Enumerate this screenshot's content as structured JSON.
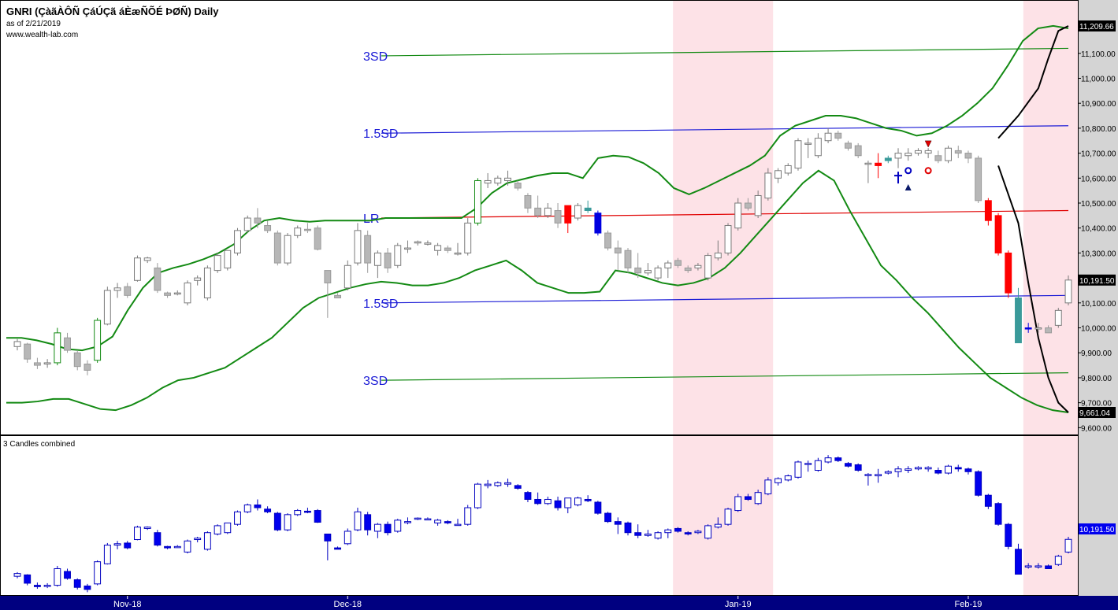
{
  "header": {
    "title": "GNRI (ÇàãÀÔÑ ÇáÚÇã áÈæÑÕÉ ÞØÑ) Daily",
    "as_of": "as of 2/21/2019",
    "source": "www.wealth-lab.com"
  },
  "lower_pane": {
    "title": "3 Candles combined"
  },
  "chart_data": [
    {
      "type": "candlestick",
      "title": "GNRI (ÇàãÀÔÑ ÇáÚÇã áÈæÑÕÉ ÞØÑ) Daily",
      "yticks": [
        "11,100.00",
        "11,000.00",
        "10,900.00",
        "10,800.00",
        "10,700.00",
        "10,600.00",
        "10,500.00",
        "10,400.00",
        "10,300.00",
        "10,200.00",
        "10,100.00",
        "10,000.00",
        "9,900.00",
        "9,800.00",
        "9,700.00",
        "9,600.00"
      ],
      "ylim": [
        9600,
        11250
      ],
      "x_labels": [
        "Nov-18",
        "Dec-18",
        "Jan-19",
        "Feb-19"
      ],
      "last_values": {
        "projection_top": "11,209.66",
        "close": "10,191.50",
        "projection_bottom": "9,661.04"
      },
      "regression_channel_labels": [
        "3SD",
        "1.5SD",
        "LR",
        "1.5SD",
        "3SD"
      ],
      "regression_channel": {
        "lr_start": 10440,
        "lr_end": 10470,
        "sd15": 340,
        "sd3": 650
      },
      "highlighted_periods": [
        "late Dec-18 to early Jan-19",
        "mid Feb-19 to end"
      ],
      "colors": {
        "up_body": "#ffffff",
        "down_body": "#b7b7b7",
        "highlight_red": "#ff0000",
        "highlight_teal": "#3a9a9a",
        "highlight_blue": "#0000e0",
        "bands": "#138a13",
        "lr": "#e00000",
        "channel": "#1c1cd6",
        "shade": "#fde2e7"
      },
      "candles": [
        {
          "o": 9925,
          "h": 9955,
          "l": 9910,
          "c": 9945
        },
        {
          "o": 9935,
          "h": 9940,
          "l": 9860,
          "c": 9875
        },
        {
          "o": 9860,
          "h": 9880,
          "l": 9835,
          "c": 9850
        },
        {
          "o": 9855,
          "h": 9875,
          "l": 9840,
          "c": 9860
        },
        {
          "o": 9860,
          "h": 10000,
          "l": 9850,
          "c": 9980
        },
        {
          "o": 9960,
          "h": 9980,
          "l": 9900,
          "c": 9910
        },
        {
          "o": 9900,
          "h": 9910,
          "l": 9830,
          "c": 9845
        },
        {
          "o": 9855,
          "h": 9870,
          "l": 9810,
          "c": 9830
        },
        {
          "o": 9870,
          "h": 10040,
          "l": 9860,
          "c": 10030
        },
        {
          "o": 10015,
          "h": 10165,
          "l": 10010,
          "c": 10150
        },
        {
          "o": 10150,
          "h": 10180,
          "l": 10120,
          "c": 10160
        },
        {
          "o": 10165,
          "h": 10180,
          "l": 10120,
          "c": 10130
        },
        {
          "o": 10190,
          "h": 10290,
          "l": 10185,
          "c": 10280
        },
        {
          "o": 10270,
          "h": 10285,
          "l": 10260,
          "c": 10280
        },
        {
          "o": 10240,
          "h": 10260,
          "l": 10140,
          "c": 10150
        },
        {
          "o": 10140,
          "h": 10145,
          "l": 10120,
          "c": 10130
        },
        {
          "o": 10140,
          "h": 10150,
          "l": 10130,
          "c": 10140
        },
        {
          "o": 10100,
          "h": 10190,
          "l": 10090,
          "c": 10180
        },
        {
          "o": 10190,
          "h": 10210,
          "l": 10170,
          "c": 10200
        },
        {
          "o": 10120,
          "h": 10250,
          "l": 10110,
          "c": 10240
        },
        {
          "o": 10230,
          "h": 10300,
          "l": 10220,
          "c": 10290
        },
        {
          "o": 10240,
          "h": 10310,
          "l": 10230,
          "c": 10310
        },
        {
          "o": 10300,
          "h": 10400,
          "l": 10290,
          "c": 10390
        },
        {
          "o": 10390,
          "h": 10450,
          "l": 10380,
          "c": 10440
        },
        {
          "o": 10440,
          "h": 10480,
          "l": 10400,
          "c": 10420
        },
        {
          "o": 10410,
          "h": 10430,
          "l": 10380,
          "c": 10390
        },
        {
          "o": 10380,
          "h": 10390,
          "l": 10250,
          "c": 10260
        },
        {
          "o": 10260,
          "h": 10380,
          "l": 10250,
          "c": 10370
        },
        {
          "o": 10370,
          "h": 10410,
          "l": 10360,
          "c": 10400
        },
        {
          "o": 10395,
          "h": 10420,
          "l": 10380,
          "c": 10390
        },
        {
          "o": 10400,
          "h": 10410,
          "l": 10310,
          "c": 10315
        },
        {
          "o": 10230,
          "h": 10230,
          "l": 10040,
          "c": 10180
        },
        {
          "o": 10130,
          "h": 10140,
          "l": 10120,
          "c": 10120
        },
        {
          "o": 10160,
          "h": 10270,
          "l": 10150,
          "c": 10250
        },
        {
          "o": 10260,
          "h": 10420,
          "l": 10250,
          "c": 10390
        },
        {
          "o": 10370,
          "h": 10390,
          "l": 10220,
          "c": 10260
        },
        {
          "o": 10250,
          "h": 10310,
          "l": 10200,
          "c": 10300
        },
        {
          "o": 10300,
          "h": 10320,
          "l": 10220,
          "c": 10240
        },
        {
          "o": 10250,
          "h": 10340,
          "l": 10240,
          "c": 10330
        },
        {
          "o": 10320,
          "h": 10350,
          "l": 10300,
          "c": 10320
        },
        {
          "o": 10340,
          "h": 10350,
          "l": 10330,
          "c": 10345
        },
        {
          "o": 10335,
          "h": 10350,
          "l": 10330,
          "c": 10340
        },
        {
          "o": 10310,
          "h": 10340,
          "l": 10290,
          "c": 10330
        },
        {
          "o": 10320,
          "h": 10330,
          "l": 10300,
          "c": 10310
        },
        {
          "o": 10300,
          "h": 10340,
          "l": 10290,
          "c": 10300
        },
        {
          "o": 10300,
          "h": 10440,
          "l": 10290,
          "c": 10420
        },
        {
          "o": 10420,
          "h": 10600,
          "l": 10410,
          "c": 10590
        },
        {
          "o": 10580,
          "h": 10620,
          "l": 10560,
          "c": 10590
        },
        {
          "o": 10580,
          "h": 10610,
          "l": 10570,
          "c": 10600
        },
        {
          "o": 10590,
          "h": 10630,
          "l": 10570,
          "c": 10600
        },
        {
          "o": 10580,
          "h": 10590,
          "l": 10550,
          "c": 10560
        },
        {
          "o": 10530,
          "h": 10540,
          "l": 10460,
          "c": 10480
        },
        {
          "o": 10480,
          "h": 10530,
          "l": 10440,
          "c": 10450
        },
        {
          "o": 10450,
          "h": 10500,
          "l": 10440,
          "c": 10480
        },
        {
          "o": 10470,
          "h": 10500,
          "l": 10400,
          "c": 10420
        },
        {
          "o": 10420,
          "h": 10480,
          "l": 10380,
          "c": 10490
        },
        {
          "o": 10440,
          "h": 10500,
          "l": 10430,
          "c": 10490
        },
        {
          "o": 10480,
          "h": 10510,
          "l": 10460,
          "c": 10470
        },
        {
          "o": 10460,
          "h": 10470,
          "l": 10370,
          "c": 10380
        },
        {
          "o": 10380,
          "h": 10390,
          "l": 10310,
          "c": 10320
        },
        {
          "o": 10320,
          "h": 10350,
          "l": 10230,
          "c": 10300
        },
        {
          "o": 10310,
          "h": 10320,
          "l": 10220,
          "c": 10240
        },
        {
          "o": 10240,
          "h": 10300,
          "l": 10200,
          "c": 10220
        },
        {
          "o": 10220,
          "h": 10260,
          "l": 10210,
          "c": 10230
        },
        {
          "o": 10200,
          "h": 10250,
          "l": 10190,
          "c": 10240
        },
        {
          "o": 10240,
          "h": 10270,
          "l": 10200,
          "c": 10260
        },
        {
          "o": 10270,
          "h": 10280,
          "l": 10240,
          "c": 10250
        },
        {
          "o": 10240,
          "h": 10250,
          "l": 10220,
          "c": 10230
        },
        {
          "o": 10240,
          "h": 10260,
          "l": 10230,
          "c": 10250
        },
        {
          "o": 10200,
          "h": 10300,
          "l": 10190,
          "c": 10290
        },
        {
          "o": 10280,
          "h": 10350,
          "l": 10270,
          "c": 10300
        },
        {
          "o": 10300,
          "h": 10420,
          "l": 10290,
          "c": 10410
        },
        {
          "o": 10400,
          "h": 10520,
          "l": 10390,
          "c": 10500
        },
        {
          "o": 10500,
          "h": 10520,
          "l": 10470,
          "c": 10480
        },
        {
          "o": 10450,
          "h": 10550,
          "l": 10440,
          "c": 10530
        },
        {
          "o": 10520,
          "h": 10640,
          "l": 10510,
          "c": 10620
        },
        {
          "o": 10600,
          "h": 10640,
          "l": 10580,
          "c": 10630
        },
        {
          "o": 10620,
          "h": 10660,
          "l": 10610,
          "c": 10650
        },
        {
          "o": 10640,
          "h": 10760,
          "l": 10630,
          "c": 10750
        },
        {
          "o": 10740,
          "h": 10760,
          "l": 10680,
          "c": 10740
        },
        {
          "o": 10690,
          "h": 10780,
          "l": 10680,
          "c": 10760
        },
        {
          "o": 10750,
          "h": 10800,
          "l": 10740,
          "c": 10780
        },
        {
          "o": 10780,
          "h": 10790,
          "l": 10750,
          "c": 10760
        },
        {
          "o": 10740,
          "h": 10750,
          "l": 10710,
          "c": 10720
        },
        {
          "o": 10730,
          "h": 10740,
          "l": 10680,
          "c": 10690
        },
        {
          "o": 10660,
          "h": 10670,
          "l": 10580,
          "c": 10660
        },
        {
          "o": 10650,
          "h": 10700,
          "l": 10600,
          "c": 10660
        },
        {
          "o": 10670,
          "h": 10690,
          "l": 10660,
          "c": 10680
        },
        {
          "o": 10680,
          "h": 10720,
          "l": 10640,
          "c": 10700
        },
        {
          "o": 10690,
          "h": 10720,
          "l": 10670,
          "c": 10700
        },
        {
          "o": 10700,
          "h": 10720,
          "l": 10690,
          "c": 10710
        },
        {
          "o": 10700,
          "h": 10720,
          "l": 10680,
          "c": 10710
        },
        {
          "o": 10690,
          "h": 10710,
          "l": 10660,
          "c": 10670
        },
        {
          "o": 10670,
          "h": 10730,
          "l": 10660,
          "c": 10720
        },
        {
          "o": 10710,
          "h": 10730,
          "l": 10680,
          "c": 10700
        },
        {
          "o": 10700,
          "h": 10710,
          "l": 10660,
          "c": 10680
        },
        {
          "o": 10680,
          "h": 10690,
          "l": 10500,
          "c": 10510
        },
        {
          "o": 10510,
          "h": 10520,
          "l": 10410,
          "c": 10430
        },
        {
          "o": 10450,
          "h": 10460,
          "l": 10290,
          "c": 10300
        },
        {
          "o": 10300,
          "h": 10310,
          "l": 10120,
          "c": 10140
        },
        {
          "o": 10120,
          "h": 10160,
          "l": 9940,
          "c": 9940
        },
        {
          "o": 10000,
          "h": 10020,
          "l": 9980,
          "c": 10000
        },
        {
          "o": 10000,
          "h": 10020,
          "l": 9980,
          "c": 10000
        },
        {
          "o": 10000,
          "h": 10010,
          "l": 9980,
          "c": 9980
        },
        {
          "o": 10010,
          "h": 10080,
          "l": 10000,
          "c": 10070
        },
        {
          "o": 10100,
          "h": 10210,
          "l": 10090,
          "c": 10191.5
        }
      ],
      "bollinger_upper": [
        9960,
        9960,
        9950,
        9935,
        9915,
        9910,
        9925,
        9965,
        10070,
        10160,
        10220,
        10240,
        10255,
        10275,
        10300,
        10335,
        10390,
        10430,
        10440,
        10430,
        10425,
        10430,
        10430,
        10430,
        10430,
        10440,
        10440,
        10440,
        10440,
        10440,
        10440,
        10480,
        10540,
        10580,
        10595,
        10610,
        10620,
        10620,
        10600,
        10680,
        10690,
        10685,
        10660,
        10620,
        10560,
        10535,
        10560,
        10590,
        10620,
        10650,
        10690,
        10770,
        10810,
        10830,
        10850,
        10850,
        10840,
        10820,
        10800,
        10790,
        10770,
        10780,
        10810,
        10850,
        10900,
        10960,
        11050,
        11150,
        11200,
        11210,
        11200
      ],
      "bollinger_lower": [
        9700,
        9700,
        9705,
        9715,
        9715,
        9695,
        9675,
        9670,
        9690,
        9720,
        9760,
        9790,
        9800,
        9820,
        9840,
        9880,
        9920,
        9960,
        10020,
        10080,
        10120,
        10140,
        10160,
        10175,
        10185,
        10180,
        10170,
        10170,
        10180,
        10200,
        10230,
        10250,
        10270,
        10230,
        10180,
        10160,
        10140,
        10140,
        10145,
        10230,
        10220,
        10200,
        10180,
        10170,
        10180,
        10200,
        10240,
        10300,
        10370,
        10440,
        10510,
        10580,
        10630,
        10590,
        10470,
        10360,
        10250,
        10190,
        10120,
        10060,
        9990,
        9920,
        9860,
        9800,
        9760,
        9720,
        9690,
        9670,
        9661
      ]
    },
    {
      "type": "candlestick",
      "title": "3 Candles combined",
      "last_value": "10,191.50",
      "colors": {
        "up_body": "#ffffff",
        "down_body": "#0000ee",
        "shade": "#fde2e7"
      }
    }
  ]
}
